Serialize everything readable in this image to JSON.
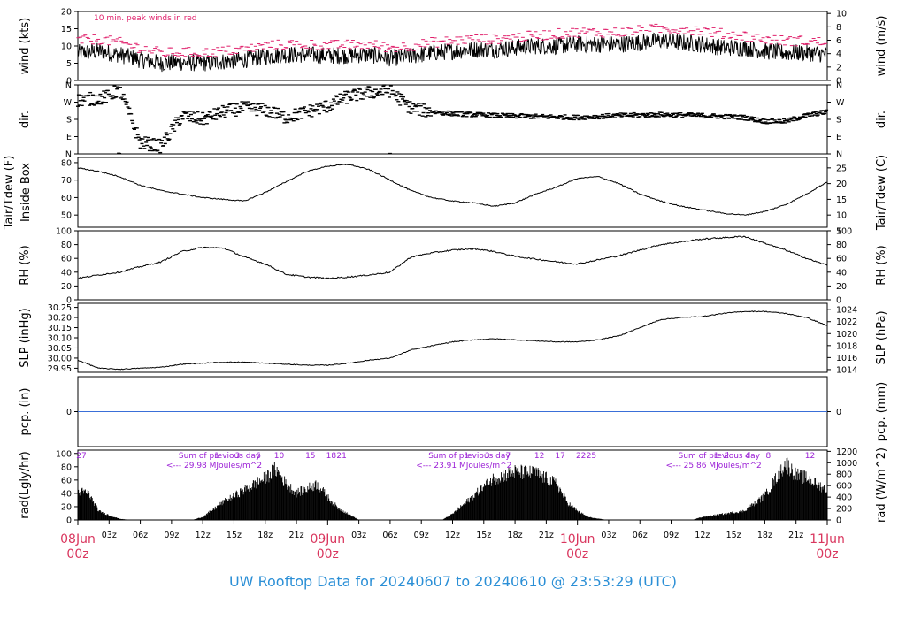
{
  "title": "UW Rooftop Data for 20240607  to  20240610 @ 23:53:29  (UTC)",
  "colors": {
    "axis": "#000000",
    "peak": "#e0206b",
    "date": "#d9365e",
    "purple": "#9b1fd6",
    "pcp_line": "#3a6fd8",
    "title": "#2b8fd6"
  },
  "time_axis": {
    "hours_total": 72,
    "minor_labels": [
      "03z",
      "06z",
      "09z",
      "12z",
      "15z",
      "18z",
      "21z",
      "03z",
      "06z",
      "09z",
      "12z",
      "15z",
      "18z",
      "21z",
      "03z",
      "06z",
      "09z",
      "12z",
      "15z",
      "18z",
      "21z"
    ],
    "minor_hours": [
      3,
      6,
      9,
      12,
      15,
      18,
      21,
      27,
      30,
      33,
      36,
      39,
      42,
      45,
      51,
      54,
      57,
      60,
      63,
      66,
      69
    ],
    "date_labels": [
      {
        "hour": 0,
        "line1": "08Jun",
        "line2": "00z"
      },
      {
        "hour": 24,
        "line1": "09Jun",
        "line2": "00z"
      },
      {
        "hour": 48,
        "line1": "10Jun",
        "line2": "00z"
      },
      {
        "hour": 72,
        "line1": "11Jun",
        "line2": "00z"
      }
    ]
  },
  "chart_data": [
    {
      "type": "line",
      "name": "wind",
      "ylabel_left": "wind (kts)",
      "ylabel_right": "wind (m/s)",
      "annotation": "10 min. peak winds in red",
      "ylim": [
        0,
        20
      ],
      "left_ticks": [
        "0",
        "5",
        "10",
        "15",
        "20"
      ],
      "right_ticks": [
        "0",
        "2",
        "4",
        "6",
        "8",
        "10"
      ],
      "x_hours": [
        0,
        2,
        4,
        6,
        8,
        10,
        12,
        14,
        16,
        18,
        20,
        22,
        24,
        26,
        28,
        30,
        32,
        34,
        36,
        38,
        40,
        42,
        44,
        46,
        48,
        50,
        52,
        54,
        56,
        58,
        60,
        62,
        64,
        66,
        68,
        70,
        72
      ],
      "series": [
        {
          "values": [
            8,
            8.5,
            7.5,
            6,
            5,
            5.2,
            5,
            5.5,
            6,
            7,
            7.5,
            7.5,
            7.2,
            7.3,
            7.5,
            6.5,
            7,
            8,
            8.5,
            9,
            9,
            9.5,
            10,
            10,
            10.5,
            10.5,
            10.5,
            11,
            11.5,
            11,
            10.5,
            9.5,
            9.5,
            8.5,
            8,
            8,
            7.5
          ]
        },
        {
          "values": [
            11.5,
            12,
            11,
            9.5,
            8,
            8.2,
            8,
            8.5,
            9,
            10,
            10.5,
            10.5,
            10.2,
            10.3,
            10.5,
            9.5,
            10,
            11,
            11.5,
            12,
            12,
            12.5,
            13,
            13.5,
            14,
            14,
            14,
            14.5,
            15,
            15,
            14.5,
            13.5,
            13,
            12,
            11.5,
            11.5,
            11
          ]
        }
      ]
    },
    {
      "type": "scatter",
      "name": "direction",
      "ylabel_left": "dir.",
      "ylabel_right": "dir.",
      "ylim": [
        0,
        360
      ],
      "left_ticks": [
        "N",
        "E",
        "S",
        "W",
        "N"
      ],
      "right_ticks": [
        "N",
        "E",
        "S",
        "W",
        "N"
      ],
      "description_values_deg": {
        "x_hours": [
          0,
          2,
          3,
          4,
          6,
          8,
          10,
          12,
          14,
          16,
          18,
          20,
          22,
          24,
          26,
          28,
          30,
          32,
          34,
          36,
          40,
          44,
          48,
          52,
          56,
          60,
          64,
          66,
          68,
          70,
          72
        ],
        "values": [
          280,
          290,
          300,
          340,
          60,
          40,
          200,
          180,
          220,
          240,
          230,
          190,
          220,
          250,
          300,
          320,
          330,
          240,
          220,
          210,
          200,
          195,
          190,
          200,
          205,
          200,
          190,
          170,
          170,
          200,
          220
        ]
      }
    },
    {
      "type": "line",
      "name": "temperature",
      "ylabel_left": "Tair/Tdew (F)",
      "ylabel_left2": "Inside Box",
      "ylabel_right": "Tair/Tdew (C)",
      "ylim": [
        43,
        83
      ],
      "left_ticks": [
        "50",
        "60",
        "70",
        "80"
      ],
      "right_ticks": [
        "5",
        "10",
        "15",
        "20",
        "25"
      ],
      "x_hours": [
        0,
        2,
        4,
        6,
        8,
        10,
        12,
        14,
        16,
        18,
        20,
        22,
        24,
        26,
        28,
        30,
        32,
        34,
        36,
        38,
        40,
        42,
        44,
        46,
        48,
        50,
        52,
        54,
        56,
        58,
        60,
        62,
        64,
        66,
        68,
        70,
        72
      ],
      "values": [
        77,
        75,
        72,
        67,
        64,
        62,
        60,
        59,
        58,
        63,
        69,
        75,
        78,
        79,
        76,
        70,
        64,
        60,
        58,
        57,
        55,
        57,
        62,
        66,
        71,
        72,
        68,
        62,
        58,
        55,
        53,
        51,
        50,
        52,
        56,
        62,
        69
      ]
    },
    {
      "type": "line",
      "name": "relative_humidity",
      "ylabel_left": "RH (%)",
      "ylabel_right": "RH (%)",
      "ylim": [
        0,
        100
      ],
      "left_ticks": [
        "0",
        "20",
        "40",
        "60",
        "80",
        "100"
      ],
      "right_ticks": [
        "0",
        "20",
        "40",
        "60",
        "80",
        "100"
      ],
      "x_hours": [
        0,
        2,
        4,
        6,
        8,
        10,
        12,
        14,
        16,
        18,
        20,
        22,
        24,
        26,
        28,
        30,
        32,
        34,
        36,
        38,
        40,
        42,
        44,
        46,
        48,
        50,
        52,
        54,
        56,
        58,
        60,
        62,
        64,
        66,
        68,
        70,
        72
      ],
      "values": [
        31,
        36,
        40,
        48,
        55,
        70,
        76,
        75,
        62,
        52,
        37,
        33,
        31,
        33,
        36,
        40,
        62,
        68,
        72,
        74,
        70,
        63,
        59,
        55,
        52,
        58,
        64,
        72,
        80,
        84,
        88,
        90,
        92,
        82,
        72,
        60,
        50
      ]
    },
    {
      "type": "line",
      "name": "sea_level_pressure",
      "ylabel_left": "SLP (inHg)",
      "ylabel_right": "SLP (hPa)",
      "ylim": [
        29.93,
        30.27
      ],
      "left_ticks": [
        "29.95",
        "30.00",
        "30.05",
        "30.10",
        "30.15",
        "30.20",
        "30.25"
      ],
      "right_ticks": [
        "1014",
        "1016",
        "1018",
        "1020",
        "1022",
        "1024"
      ],
      "x_hours": [
        0,
        2,
        4,
        6,
        8,
        10,
        12,
        14,
        16,
        18,
        20,
        22,
        24,
        26,
        28,
        30,
        32,
        34,
        36,
        38,
        40,
        42,
        44,
        46,
        48,
        50,
        52,
        54,
        56,
        58,
        60,
        62,
        64,
        66,
        68,
        70,
        72
      ],
      "values": [
        29.99,
        29.95,
        29.945,
        29.95,
        29.955,
        29.97,
        29.975,
        29.98,
        29.98,
        29.975,
        29.97,
        29.965,
        29.965,
        29.975,
        29.99,
        30.0,
        30.04,
        30.06,
        30.08,
        30.09,
        30.095,
        30.09,
        30.085,
        30.08,
        30.08,
        30.09,
        30.11,
        30.15,
        30.19,
        30.2,
        30.205,
        30.22,
        30.23,
        30.23,
        30.22,
        30.2,
        30.16
      ]
    },
    {
      "type": "line",
      "name": "precipitation",
      "ylabel_left": "pcp. (in)",
      "ylabel_right": "pcp. (mm)",
      "ylim": [
        -1,
        1
      ],
      "left_ticks": [
        "0"
      ],
      "right_ticks": [
        "0"
      ],
      "values": [
        0
      ]
    },
    {
      "type": "area",
      "name": "radiation",
      "ylabel_left": "rad(Lgly/hr)",
      "ylabel_right": "rad (W/m^2)",
      "ylim": [
        0,
        105
      ],
      "left_ticks": [
        "0",
        "20",
        "40",
        "60",
        "80",
        "100"
      ],
      "right_ticks": [
        "0",
        "200",
        "400",
        "600",
        "800",
        "1000",
        "1200"
      ],
      "x_hours": [
        0,
        1,
        2,
        3,
        4,
        5,
        11,
        12,
        14,
        16,
        18,
        19,
        20,
        21,
        22,
        23,
        24,
        25,
        26,
        27,
        35,
        36,
        38,
        40,
        42,
        44,
        46,
        47,
        48,
        49,
        50,
        51,
        59,
        60,
        62,
        64,
        66,
        68,
        69,
        70,
        71,
        72
      ],
      "values": [
        48,
        45,
        15,
        8,
        2,
        0,
        0,
        5,
        30,
        50,
        70,
        85,
        60,
        45,
        52,
        60,
        38,
        20,
        10,
        0,
        0,
        10,
        40,
        70,
        80,
        78,
        60,
        30,
        15,
        5,
        2,
        0,
        0,
        5,
        10,
        15,
        40,
        95,
        75,
        70,
        60,
        50
      ],
      "annotations": [
        {
          "text": "Sum of previous day",
          "hour": 9
        },
        {
          "text": "<--- 29.98 MJoules/m^2",
          "hour": 9
        },
        {
          "text": "Sum of previous day",
          "hour": 33
        },
        {
          "text": "<--- 23.91 MJoules/m^2",
          "hour": 33
        },
        {
          "text": "Sum of previous day",
          "hour": 57
        },
        {
          "text": "<--- 25.86 MJoules/m^2",
          "hour": 57
        }
      ],
      "top_marks": [
        "27",
        "1",
        "3",
        "6",
        "10",
        "15",
        "18",
        "21",
        "1",
        "3",
        "7",
        "12",
        "17",
        "22",
        "25",
        "1",
        "2",
        "4",
        "8",
        "12"
      ]
    }
  ]
}
